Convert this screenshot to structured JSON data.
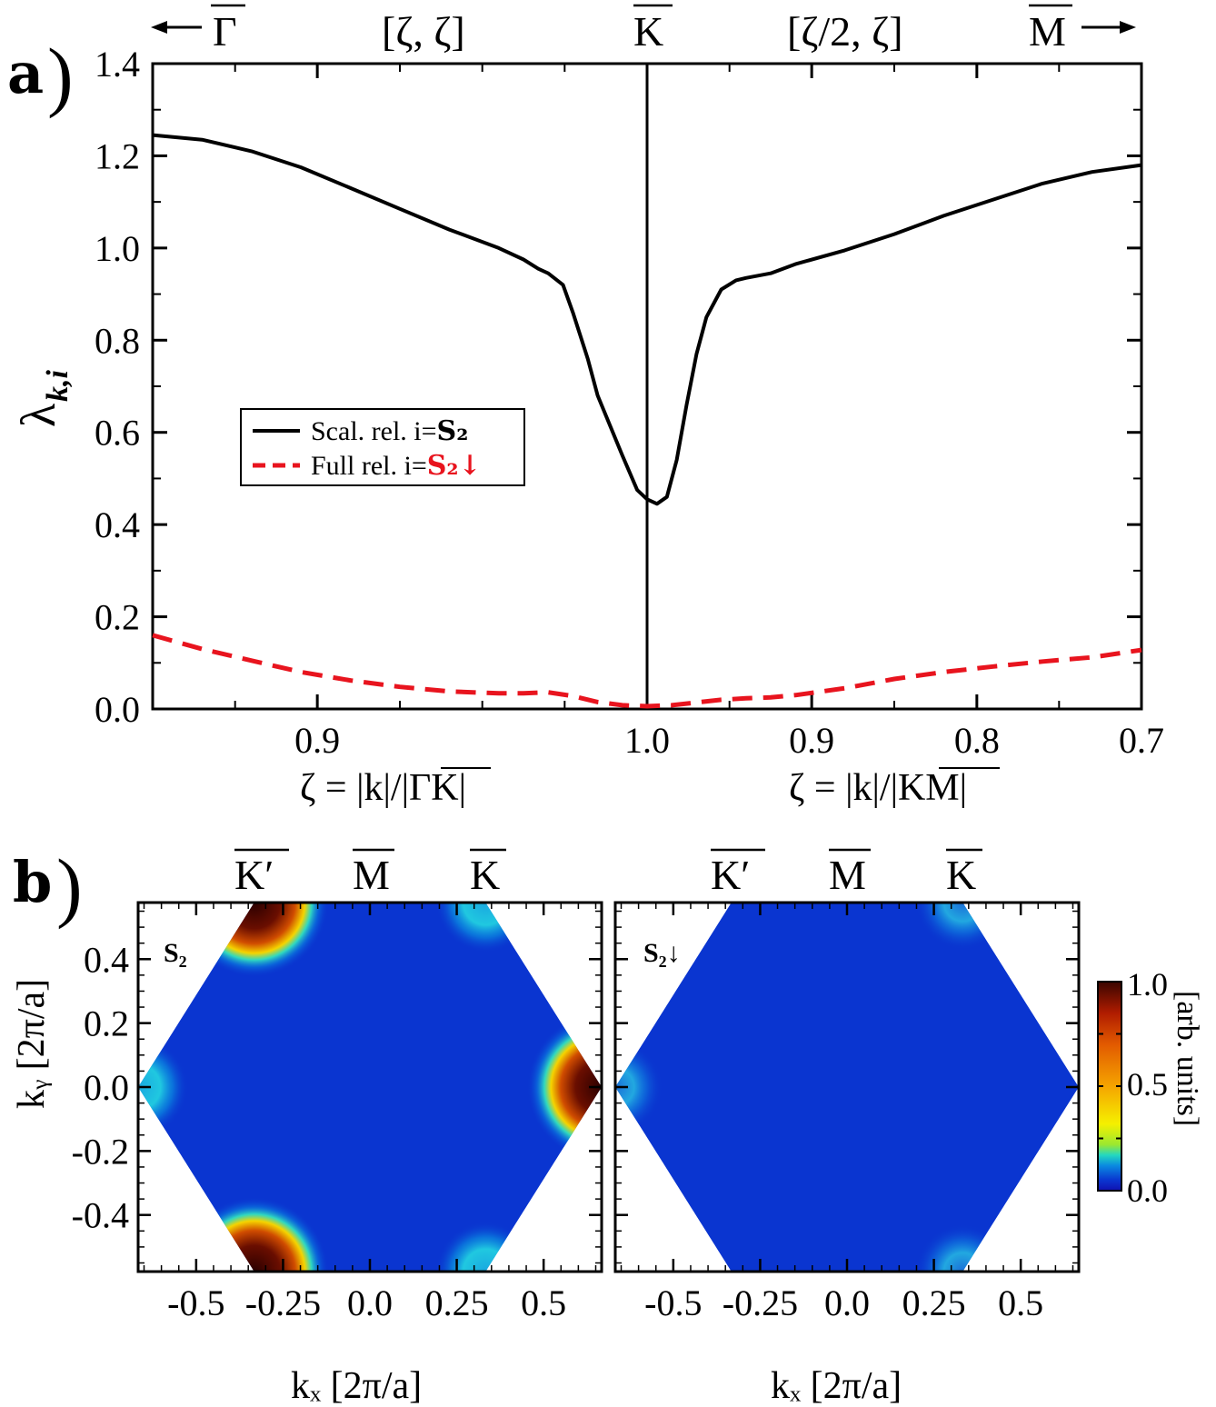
{
  "panel_a": {
    "panel_label": "a",
    "top_labels": {
      "left": "Γ",
      "left_path": "[ζ, ζ]",
      "center": "K",
      "right_path": "[ζ/2, ζ]",
      "right": "M"
    },
    "xlabel_left": "ζ = |k|/|ΓK|",
    "xlabel_right": "ζ = |k|/|KM|",
    "ylabel_main": "λ",
    "ylabel_sub": "k,i",
    "legend": [
      {
        "text": "Scal. rel. i=",
        "state": "S₂",
        "color": "#000000",
        "style": "solid"
      },
      {
        "text": "Full rel. i=",
        "state": "S₂↓",
        "color": "#e8141e",
        "style": "dashed"
      }
    ]
  },
  "panel_b": {
    "panel_label": "b",
    "top_labels": [
      "K′",
      "M",
      "K"
    ],
    "xlabel": "kₓ [2π/a]",
    "ylabel": "kᵧ [2π/a]",
    "maps": [
      {
        "label": "S₂",
        "label_color": "#000000"
      },
      {
        "label": "S₂↓",
        "label_color": "#e8141e"
      }
    ],
    "colorbar": {
      "title": "[arb. units]",
      "ticks": [
        "1.0",
        "0.5",
        "0.0"
      ]
    }
  },
  "chart_data": [
    {
      "type": "line",
      "title": "",
      "xlabel": "ζ = |k|/|ΓK|  |  ζ = |k|/|KM|",
      "ylabel": "λ_k,i",
      "x_path_coord": "0 = start near Γ side (ζ≈0.85), 1 = K point (ζ=1.0), 2 = end near M side (ζ=0.7)",
      "xticks": [
        {
          "pos": 0.333,
          "label": "0.9"
        },
        {
          "pos": 1.0,
          "label": "1.0"
        },
        {
          "pos": 1.333,
          "label": "0.9"
        },
        {
          "pos": 1.667,
          "label": "0.8"
        },
        {
          "pos": 2.0,
          "label": "0.7"
        }
      ],
      "ylim": [
        0,
        1.4
      ],
      "yticks": [
        "0.0",
        "0.2",
        "0.4",
        "0.6",
        "0.8",
        "1.0",
        "1.2",
        "1.4"
      ],
      "series": [
        {
          "name": "Scal. rel. i=S₂",
          "color": "#000000",
          "style": "solid",
          "x": [
            0.0,
            0.1,
            0.2,
            0.3,
            0.4,
            0.5,
            0.6,
            0.7,
            0.75,
            0.78,
            0.8,
            0.83,
            0.85,
            0.88,
            0.9,
            0.95,
            0.98,
            1.0,
            1.02,
            1.04,
            1.06,
            1.08,
            1.1,
            1.12,
            1.15,
            1.18,
            1.2,
            1.25,
            1.3,
            1.4,
            1.5,
            1.6,
            1.7,
            1.8,
            1.9,
            2.0
          ],
          "values": [
            1.245,
            1.235,
            1.21,
            1.175,
            1.13,
            1.085,
            1.04,
            1.0,
            0.975,
            0.955,
            0.945,
            0.92,
            0.86,
            0.76,
            0.68,
            0.55,
            0.475,
            0.455,
            0.445,
            0.46,
            0.54,
            0.66,
            0.77,
            0.85,
            0.91,
            0.93,
            0.935,
            0.945,
            0.965,
            0.995,
            1.03,
            1.07,
            1.105,
            1.14,
            1.165,
            1.18
          ]
        },
        {
          "name": "Full rel. i=S₂↓",
          "color": "#e8141e",
          "style": "dashed",
          "x": [
            0.0,
            0.1,
            0.2,
            0.3,
            0.4,
            0.5,
            0.6,
            0.7,
            0.75,
            0.8,
            0.85,
            0.9,
            0.95,
            1.0,
            1.05,
            1.1,
            1.15,
            1.2,
            1.25,
            1.3,
            1.4,
            1.5,
            1.6,
            1.7,
            1.8,
            1.9,
            2.0
          ],
          "values": [
            0.16,
            0.13,
            0.105,
            0.08,
            0.062,
            0.048,
            0.038,
            0.034,
            0.034,
            0.036,
            0.028,
            0.015,
            0.008,
            0.006,
            0.008,
            0.014,
            0.02,
            0.023,
            0.025,
            0.03,
            0.045,
            0.065,
            0.08,
            0.092,
            0.103,
            0.112,
            0.128
          ]
        }
      ]
    },
    {
      "type": "heatmap",
      "title": "S₂",
      "xlabel": "kₓ [2π/a]",
      "ylabel": "kᵧ [2π/a]",
      "xlim": [
        -0.667,
        0.667
      ],
      "ylim": [
        -0.577,
        0.577
      ],
      "xticks": [
        "-0.5",
        "-0.25",
        "0.0",
        "0.25",
        "0.5"
      ],
      "yticks": [
        "0.4",
        "0.2",
        "0.0",
        "-0.2",
        "-0.4"
      ],
      "background_level": 0.05,
      "hotspots": [
        {
          "kx": -0.333,
          "ky": 0.577,
          "intensity": 1.0
        },
        {
          "kx": -0.333,
          "ky": -0.577,
          "intensity": 1.0
        },
        {
          "kx": 0.667,
          "ky": 0.0,
          "intensity": 1.0
        },
        {
          "kx": 0.333,
          "ky": 0.577,
          "intensity": 0.25
        },
        {
          "kx": 0.333,
          "ky": -0.577,
          "intensity": 0.25
        },
        {
          "kx": -0.667,
          "ky": 0.0,
          "intensity": 0.25
        }
      ]
    },
    {
      "type": "heatmap",
      "title": "S₂↓",
      "xlabel": "kₓ [2π/a]",
      "ylabel": "",
      "xlim": [
        -0.667,
        0.667
      ],
      "ylim": [
        -0.577,
        0.577
      ],
      "xticks": [
        "-0.5",
        "-0.25",
        "0.0",
        "0.25",
        "0.5"
      ],
      "background_level": 0.05,
      "hotspots": [
        {
          "kx": 0.333,
          "ky": 0.577,
          "intensity": 0.2
        },
        {
          "kx": 0.333,
          "ky": -0.577,
          "intensity": 0.2
        },
        {
          "kx": -0.667,
          "ky": 0.0,
          "intensity": 0.2
        }
      ]
    },
    {
      "type": "colorbar",
      "title": "[arb. units]",
      "range": [
        0.0,
        1.0
      ],
      "ticks": [
        "1.0",
        "0.5",
        "0.0"
      ]
    }
  ]
}
